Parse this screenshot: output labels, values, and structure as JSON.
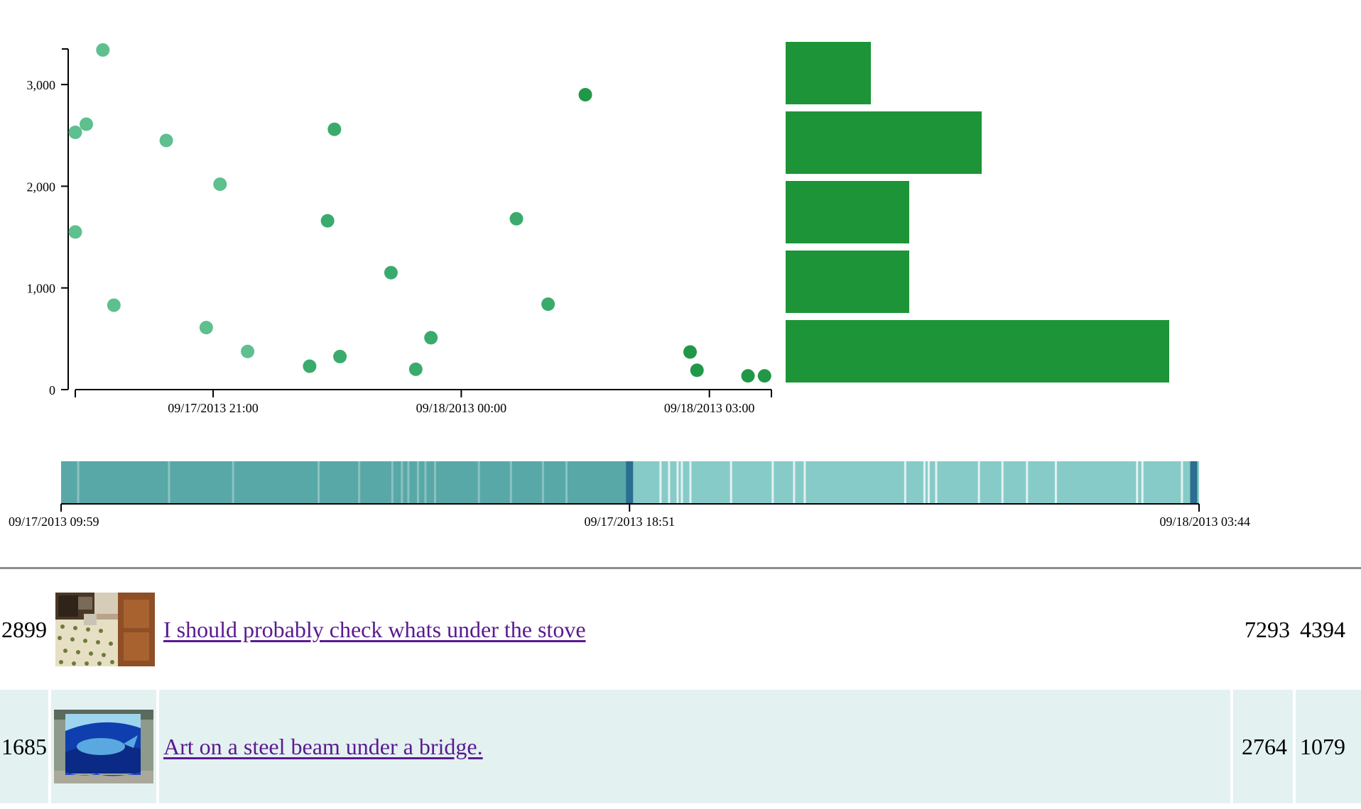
{
  "chart_data": [
    {
      "type": "scatter",
      "title": "",
      "xlabel": "",
      "ylabel": "",
      "x_axis": {
        "range": [
          "09/17/2013 19:20",
          "09/18/2013 03:45"
        ],
        "tick_labels": [
          {
            "time": "09/17/2013 21:00",
            "label": "09/17/2013 21:00"
          },
          {
            "time": "09/18/2013 00:00",
            "label": "09/18/2013 00:00"
          },
          {
            "time": "09/18/2013 03:00",
            "label": "09/18/2013 03:00"
          }
        ]
      },
      "y_axis": {
        "range": [
          0,
          3350
        ],
        "ticks": [
          0,
          1000,
          2000,
          3000
        ],
        "tick_labels": [
          "0",
          "1,000",
          "2,000",
          "3,000"
        ]
      },
      "grid": false,
      "legend": "none",
      "colors": {
        "light": "#5ebf8f",
        "mid": "#3aab6c",
        "dark": "#209848"
      },
      "points": [
        {
          "time": "09/17/2013 19:20",
          "value": 1550,
          "tone": "light"
        },
        {
          "time": "09/17/2013 19:20",
          "value": 2530,
          "tone": "light"
        },
        {
          "time": "09/17/2013 19:28",
          "value": 2610,
          "tone": "light"
        },
        {
          "time": "09/17/2013 19:40",
          "value": 3340,
          "tone": "light"
        },
        {
          "time": "09/17/2013 19:48",
          "value": 830,
          "tone": "light"
        },
        {
          "time": "09/17/2013 20:26",
          "value": 2450,
          "tone": "light"
        },
        {
          "time": "09/17/2013 20:55",
          "value": 610,
          "tone": "light"
        },
        {
          "time": "09/17/2013 21:05",
          "value": 2020,
          "tone": "light"
        },
        {
          "time": "09/17/2013 21:25",
          "value": 375,
          "tone": "light"
        },
        {
          "time": "09/17/2013 22:10",
          "value": 230,
          "tone": "mid"
        },
        {
          "time": "09/17/2013 22:23",
          "value": 1660,
          "tone": "mid"
        },
        {
          "time": "09/17/2013 22:28",
          "value": 2560,
          "tone": "mid"
        },
        {
          "time": "09/17/2013 22:32",
          "value": 325,
          "tone": "mid"
        },
        {
          "time": "09/17/2013 23:09",
          "value": 1150,
          "tone": "mid"
        },
        {
          "time": "09/17/2013 23:27",
          "value": 200,
          "tone": "mid"
        },
        {
          "time": "09/17/2013 23:38",
          "value": 510,
          "tone": "mid"
        },
        {
          "time": "09/18/2013 00:40",
          "value": 1680,
          "tone": "mid"
        },
        {
          "time": "09/18/2013 01:03",
          "value": 840,
          "tone": "mid"
        },
        {
          "time": "09/18/2013 01:30",
          "value": 2900,
          "tone": "dark"
        },
        {
          "time": "09/18/2013 02:46",
          "value": 370,
          "tone": "dark"
        },
        {
          "time": "09/18/2013 02:51",
          "value": 190,
          "tone": "dark"
        },
        {
          "time": "09/18/2013 03:28",
          "value": 135,
          "tone": "dark"
        },
        {
          "time": "09/18/2013 03:40",
          "value": 135,
          "tone": "dark"
        }
      ]
    },
    {
      "type": "bar",
      "orientation": "horizontal",
      "title": "",
      "xlabel": "",
      "ylabel": "",
      "axes_shown": false,
      "color": "#1e9438",
      "max_value": 5,
      "values": [
        1,
        2.3,
        1.45,
        1.45,
        4.5
      ]
    },
    {
      "type": "timeline",
      "title": "",
      "range": [
        "09/17/2013 09:59",
        "09/18/2013 03:44"
      ],
      "tick_labels": [
        {
          "time": "09/17/2013 09:59",
          "label": "09/17/2013 09:59"
        },
        {
          "time": "09/17/2013 18:51",
          "label": "09/17/2013 18:51"
        },
        {
          "time": "09/18/2013 03:44",
          "label": "09/18/2013 03:44"
        }
      ],
      "colors": {
        "before": "#58a8a7",
        "after": "#87cbc8",
        "marker": "#2c6e90",
        "line": "#ffffff"
      },
      "marker_times": [
        "09/17/2013 18:51",
        "09/18/2013 03:39"
      ],
      "line_times": [
        "09/17/2013 10:15",
        "09/17/2013 11:40",
        "09/17/2013 12:40",
        "09/17/2013 14:00",
        "09/17/2013 14:38",
        "09/17/2013 15:09",
        "09/17/2013 15:18",
        "09/17/2013 15:24",
        "09/17/2013 15:33",
        "09/17/2013 15:40",
        "09/17/2013 15:49",
        "09/17/2013 16:30",
        "09/17/2013 17:00",
        "09/17/2013 17:30",
        "09/17/2013 17:52",
        "09/17/2013 19:20",
        "09/17/2013 19:28",
        "09/17/2013 19:36",
        "09/17/2013 19:40",
        "09/17/2013 19:48",
        "09/17/2013 20:26",
        "09/17/2013 21:05",
        "09/17/2013 21:25",
        "09/17/2013 21:35",
        "09/17/2013 23:09",
        "09/17/2013 23:27",
        "09/17/2013 23:31",
        "09/17/2013 23:38",
        "09/18/2013 00:18",
        "09/18/2013 00:40",
        "09/18/2013 01:03",
        "09/18/2013 01:30",
        "09/18/2013 02:46",
        "09/18/2013 02:51",
        "09/18/2013 03:28"
      ]
    }
  ],
  "posts": [
    {
      "score": "2899",
      "title": "I should probably check whats under the stove",
      "num1": "7293",
      "num2": "4394",
      "thumbnail": "kitchen floor photo"
    },
    {
      "score": "1685",
      "title": "Art on a steel beam under a bridge.",
      "num1": "2764",
      "num2": "1079",
      "thumbnail": "painted whale on beam photo"
    }
  ]
}
